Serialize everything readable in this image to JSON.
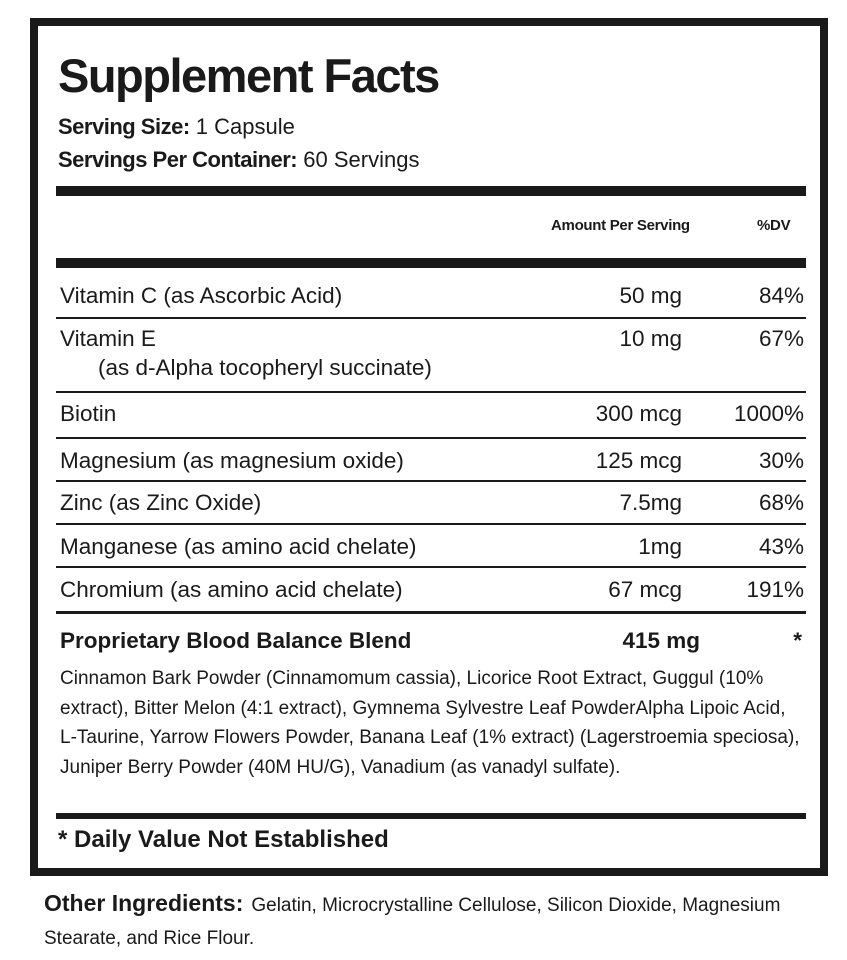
{
  "title": "Supplement Facts",
  "serving_size": {
    "label": "Serving Size:",
    "value": "1 Capsule"
  },
  "servings_per_container": {
    "label": "Servings Per Container:",
    "value": "60 Servings"
  },
  "columns": {
    "amount": "Amount Per Serving",
    "dv": "%DV"
  },
  "nutrients": [
    {
      "name": "Vitamin C (as Ascorbic Acid)",
      "amount": "50 mg",
      "dv": "84%"
    },
    {
      "name": "Vitamin E",
      "subname": "(as d-Alpha tocopheryl succinate)",
      "amount": "10 mg",
      "dv": "67%"
    },
    {
      "name": "Biotin",
      "amount": "300 mcg",
      "dv": "1000%"
    },
    {
      "name": "Magnesium (as magnesium oxide)",
      "amount": "125 mcg",
      "dv": "30%"
    },
    {
      "name": "Zinc (as Zinc Oxide)",
      "amount": "7.5mg",
      "dv": "68%"
    },
    {
      "name": "Manganese (as amino acid chelate)",
      "amount": "1mg",
      "dv": "43%"
    },
    {
      "name": "Chromium (as amino acid chelate)",
      "amount": "67 mcg",
      "dv": "191%"
    }
  ],
  "blend": {
    "name": "Proprietary Blood Balance Blend",
    "amount": "415 mg",
    "dv": "*",
    "ingredients": "Cinnamon Bark Powder (Cinnamomum cassia), Licorice Root Extract, Guggul (10% extract), Bitter Melon (4:1 extract), Gymnema Sylvestre Leaf PowderAlpha Lipoic Acid, L-Taurine, Yarrow Flowers Powder, Banana Leaf (1% extract) (Lagerstroemia speciosa), Juniper Berry Powder (40M HU/G), Vanadium (as vanadyl sulfate)."
  },
  "footnote": "* Daily Value Not Established",
  "other_ingredients": {
    "label": "Other Ingredients:",
    "value": "Gelatin, Microcrystalline Cellulose, Silicon Dioxide, Magnesium Stearate, and Rice Flour."
  }
}
